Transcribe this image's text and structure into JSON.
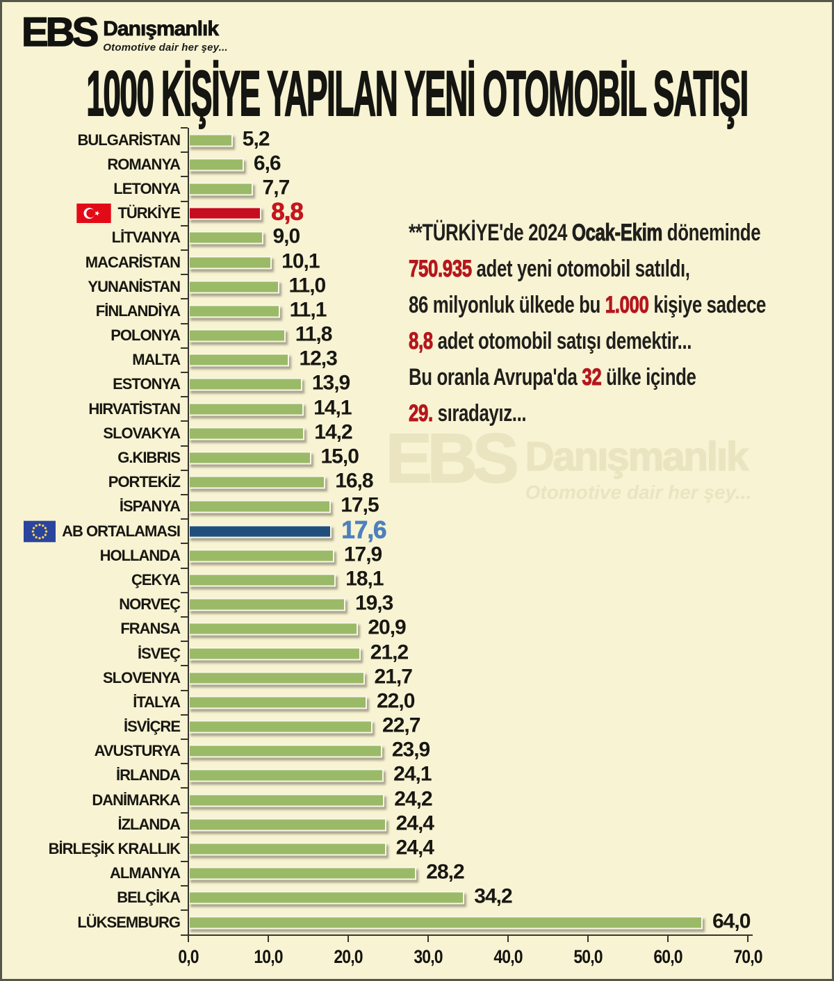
{
  "logo": {
    "name": "EBS",
    "sub": "Danışmanlık",
    "tagline": "Otomotive dair her şey..."
  },
  "watermark": {
    "name": "EBS",
    "sub": "Danışmanlık",
    "tagline": "Otomotive dair her şey..."
  },
  "annotation": {
    "lines": [
      [
        {
          "t": "**TÜRKİYE'de 2024 "
        },
        {
          "t": "Ocak-Ekim",
          "s": "b"
        },
        {
          "t": " döneminde"
        }
      ],
      [
        {
          "t": "750.935",
          "s": "r"
        },
        {
          "t": " adet yeni otomobil satıldı,"
        }
      ],
      [
        {
          "t": "86 milyonluk ülkede bu "
        },
        {
          "t": "1.000",
          "s": "r"
        },
        {
          "t": " kişiye sadece"
        }
      ],
      [
        {
          "t": "8,8",
          "s": "r"
        },
        {
          "t": " adet otomobil satışı demektir..."
        }
      ],
      [
        {
          "t": "Bu oranla Avrupa'da "
        },
        {
          "t": "32",
          "s": "r"
        },
        {
          "t": " ülke içinde"
        }
      ],
      [
        {
          "t": "29.",
          "s": "r"
        },
        {
          "t": " sıradayız..."
        }
      ]
    ]
  },
  "colors": {
    "background": "#f7f3d3",
    "frame_border": "#56574b",
    "bar_green": "#9aba68",
    "bar_red": "#c60c1e",
    "bar_navy": "#204e7c",
    "value_black": "#181712",
    "value_red": "#c4161f",
    "value_blue": "#4d80bd",
    "annotation_red": "#b5161d"
  },
  "chart_data": {
    "type": "bar",
    "orientation": "horizontal",
    "title": "1000 KİŞİYE YAPILAN YENİ OTOMOBİL SATIŞI",
    "xlabel": "",
    "ylabel": "",
    "xlim": [
      0,
      70
    ],
    "grid": false,
    "x_ticks": [
      {
        "v": 0,
        "label": "0,0"
      },
      {
        "v": 10,
        "label": "10,0"
      },
      {
        "v": 20,
        "label": "20,0"
      },
      {
        "v": 30,
        "label": "30,0"
      },
      {
        "v": 40,
        "label": "40,0"
      },
      {
        "v": 50,
        "label": "50,0"
      },
      {
        "v": 60,
        "label": "60,0"
      },
      {
        "v": 70,
        "label": "70,0"
      }
    ],
    "rows": [
      {
        "label": "BULGARİSTAN",
        "value": 5.2,
        "display": "5,2"
      },
      {
        "label": "ROMANYA",
        "value": 6.6,
        "display": "6,6"
      },
      {
        "label": "LETONYA",
        "value": 7.7,
        "display": "7,7"
      },
      {
        "label": "TÜRKİYE",
        "value": 8.8,
        "display": "8,8",
        "flag": "turkey",
        "highlight": "red"
      },
      {
        "label": "LİTVANYA",
        "value": 9.0,
        "display": "9,0"
      },
      {
        "label": "MACARİSTAN",
        "value": 10.1,
        "display": "10,1"
      },
      {
        "label": "YUNANİSTAN",
        "value": 11.0,
        "display": "11,0"
      },
      {
        "label": "FİNLANDİYA",
        "value": 11.1,
        "display": "11,1"
      },
      {
        "label": "POLONYA",
        "value": 11.8,
        "display": "11,8"
      },
      {
        "label": "MALTA",
        "value": 12.3,
        "display": "12,3"
      },
      {
        "label": "ESTONYA",
        "value": 13.9,
        "display": "13,9"
      },
      {
        "label": "HIRVATİSTAN",
        "value": 14.1,
        "display": "14,1"
      },
      {
        "label": "SLOVAKYA",
        "value": 14.2,
        "display": "14,2"
      },
      {
        "label": "G.KIBRIS",
        "value": 15.0,
        "display": "15,0"
      },
      {
        "label": "PORTEKİZ",
        "value": 16.8,
        "display": "16,8"
      },
      {
        "label": "İSPANYA",
        "value": 17.5,
        "display": "17,5"
      },
      {
        "label": "AB ORTALAMASI",
        "value": 17.6,
        "display": "17,6",
        "flag": "eu",
        "highlight": "navy"
      },
      {
        "label": "HOLLANDA",
        "value": 17.9,
        "display": "17,9"
      },
      {
        "label": "ÇEKYA",
        "value": 18.1,
        "display": "18,1"
      },
      {
        "label": "NORVEÇ",
        "value": 19.3,
        "display": "19,3"
      },
      {
        "label": "FRANSA",
        "value": 20.9,
        "display": "20,9"
      },
      {
        "label": "İSVEÇ",
        "value": 21.2,
        "display": "21,2"
      },
      {
        "label": "SLOVENYA",
        "value": 21.7,
        "display": "21,7"
      },
      {
        "label": "İTALYA",
        "value": 22.0,
        "display": "22,0"
      },
      {
        "label": "İSVİÇRE",
        "value": 22.7,
        "display": "22,7"
      },
      {
        "label": "AVUSTURYA",
        "value": 23.9,
        "display": "23,9"
      },
      {
        "label": "İRLANDA",
        "value": 24.1,
        "display": "24,1"
      },
      {
        "label": "DANİMARKA",
        "value": 24.2,
        "display": "24,2"
      },
      {
        "label": "İZLANDA",
        "value": 24.4,
        "display": "24,4"
      },
      {
        "label": "BİRLEŞİK KRALLIK",
        "value": 24.4,
        "display": "24,4"
      },
      {
        "label": "ALMANYA",
        "value": 28.2,
        "display": "28,2"
      },
      {
        "label": "BELÇİKA",
        "value": 34.2,
        "display": "34,2"
      },
      {
        "label": "LÜKSEMBURG",
        "value": 64.0,
        "display": "64,0"
      }
    ]
  }
}
